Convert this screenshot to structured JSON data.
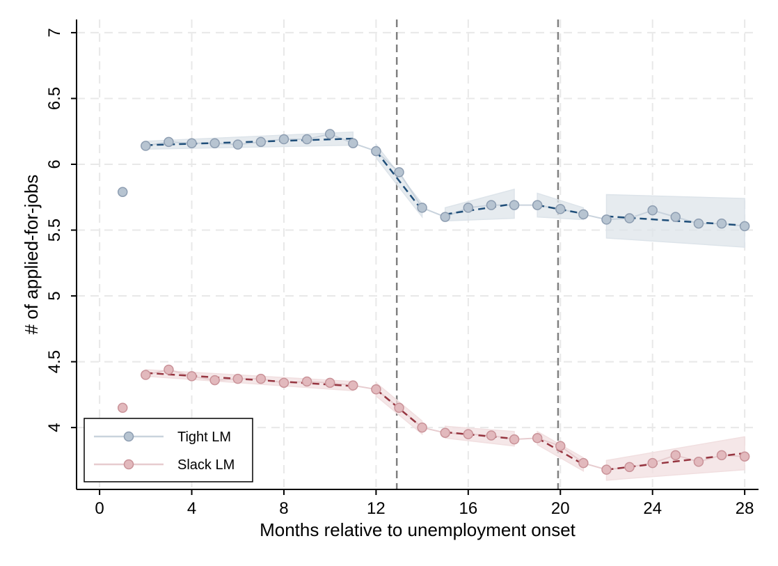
{
  "chart_data": {
    "type": "line",
    "xlabel": "Months relative to unemployment onset",
    "ylabel": "# of applied-for-jobs",
    "xlim": [
      -1,
      28.6
    ],
    "ylim": [
      3.53,
      7.1
    ],
    "x_ticks": [
      0,
      4,
      8,
      12,
      16,
      20,
      24,
      28
    ],
    "y_ticks": [
      4,
      4.5,
      5,
      5.5,
      6,
      6.5,
      7
    ],
    "y_tick_labels": [
      "4",
      "4.5",
      "5",
      "5.5",
      "6",
      "6.5",
      "7"
    ],
    "x_tick_labels": [
      "0",
      "4",
      "8",
      "12",
      "16",
      "20",
      "24",
      "28"
    ],
    "grid": true,
    "vertical_lines": [
      12.9,
      19.9
    ],
    "legend_position": "bottom-left",
    "colors": {
      "tight_marker_fill": "#b7c4d1",
      "tight_marker_edge": "#8d9db1",
      "tight_connect": "#c9d3dd",
      "tight_fit": "#1f4e79",
      "tight_band": "#dde4ea",
      "slack_marker_fill": "#e2b9bd",
      "slack_marker_edge": "#c99298",
      "slack_connect": "#e7cccf",
      "slack_fit": "#963540",
      "slack_band": "#f1dfe0",
      "vline": "#808080",
      "grid": "#e8e8e8"
    },
    "series": [
      {
        "name": "Tight LM",
        "x": [
          1,
          2,
          3,
          4,
          5,
          6,
          7,
          8,
          9,
          10,
          11,
          12,
          13,
          14,
          15,
          16,
          17,
          18,
          19,
          20,
          21,
          22,
          23,
          24,
          25,
          26,
          27,
          28
        ],
        "values": [
          5.79,
          6.14,
          6.17,
          6.16,
          6.16,
          6.15,
          6.17,
          6.19,
          6.19,
          6.23,
          6.16,
          6.1,
          5.94,
          5.67,
          5.6,
          5.67,
          5.69,
          5.69,
          5.69,
          5.66,
          5.62,
          5.58,
          5.59,
          5.65,
          5.6,
          5.55,
          5.55,
          5.53
        ],
        "fit_segments": [
          {
            "x": [
              2,
              11
            ],
            "y": [
              6.145,
              6.195
            ],
            "band_lower": [
              6.115,
              6.145
            ],
            "band_upper": [
              6.175,
              6.245
            ]
          },
          {
            "x": [
              12,
              14
            ],
            "y": [
              6.1,
              5.65
            ],
            "band_lower": [
              6.05,
              5.6
            ],
            "band_upper": [
              6.15,
              5.7
            ]
          },
          {
            "x": [
              15,
              18
            ],
            "y": [
              5.62,
              5.7
            ],
            "band_lower": [
              5.57,
              5.59
            ],
            "band_upper": [
              5.67,
              5.81
            ]
          },
          {
            "x": [
              19,
              21
            ],
            "y": [
              5.69,
              5.625
            ],
            "band_lower": [
              5.6,
              5.58
            ],
            "band_upper": [
              5.78,
              5.67
            ]
          },
          {
            "x": [
              22,
              28
            ],
            "y": [
              5.605,
              5.535
            ],
            "band_lower": [
              5.44,
              5.37
            ],
            "band_upper": [
              5.77,
              5.74
            ]
          }
        ]
      },
      {
        "name": "Slack LM",
        "x": [
          1,
          2,
          3,
          4,
          5,
          6,
          7,
          8,
          9,
          10,
          11,
          12,
          13,
          14,
          15,
          16,
          17,
          18,
          19,
          20,
          21,
          22,
          23,
          24,
          25,
          26,
          27,
          28
        ],
        "values": [
          4.15,
          4.4,
          4.44,
          4.39,
          4.36,
          4.37,
          4.37,
          4.34,
          4.35,
          4.34,
          4.32,
          4.29,
          4.15,
          4,
          3.96,
          3.95,
          3.94,
          3.91,
          3.92,
          3.86,
          3.73,
          3.68,
          3.7,
          3.73,
          3.79,
          3.74,
          3.79,
          3.78
        ],
        "fit_segments": [
          {
            "x": [
              2,
              11
            ],
            "y": [
              4.415,
              4.315
            ],
            "band_lower": [
              4.39,
              4.28
            ],
            "band_upper": [
              4.44,
              4.35
            ]
          },
          {
            "x": [
              12,
              14
            ],
            "y": [
              4.29,
              4.0
            ],
            "band_lower": [
              4.24,
              3.95
            ],
            "band_upper": [
              4.34,
              4.05
            ]
          },
          {
            "x": [
              15,
              18
            ],
            "y": [
              3.965,
              3.915
            ],
            "band_lower": [
              3.92,
              3.86
            ],
            "band_upper": [
              4.01,
              3.97
            ]
          },
          {
            "x": [
              19,
              21
            ],
            "y": [
              3.92,
              3.72
            ],
            "band_lower": [
              3.87,
              3.67
            ],
            "band_upper": [
              3.97,
              3.77
            ]
          },
          {
            "x": [
              22,
              28
            ],
            "y": [
              3.68,
              3.805
            ],
            "band_lower": [
              3.6,
              3.68
            ],
            "band_upper": [
              3.75,
              3.93
            ]
          }
        ]
      }
    ]
  }
}
